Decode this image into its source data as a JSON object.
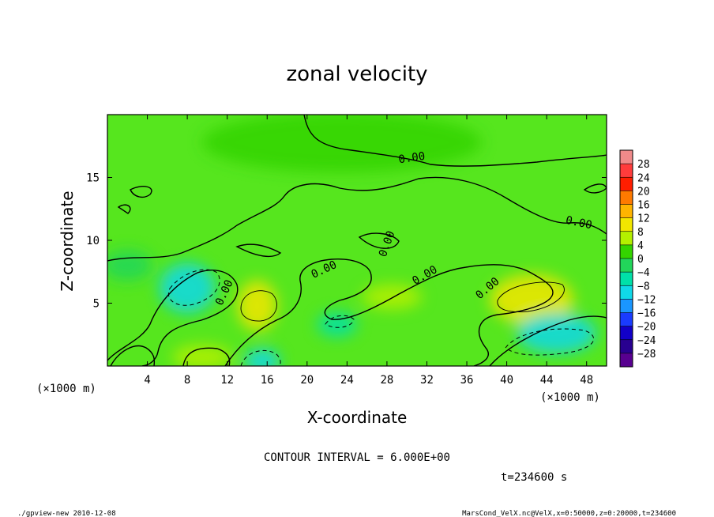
{
  "chart_data": {
    "type": "heatmap",
    "title": "zonal velocity",
    "xlabel": "X-coordinate",
    "ylabel": "Z-coordinate",
    "x_unit": "(×1000 m)",
    "y_unit": "(×1000 m)",
    "xlim": [
      0,
      50
    ],
    "ylim": [
      0,
      20
    ],
    "x_ticks": [
      4,
      8,
      12,
      16,
      20,
      24,
      28,
      32,
      36,
      40,
      44,
      48
    ],
    "y_ticks": [
      5,
      10,
      15
    ],
    "colorbar": {
      "levels": [
        28,
        24,
        20,
        16,
        12,
        8,
        4,
        0,
        -4,
        -8,
        -12,
        -16,
        -20,
        -24,
        -28
      ],
      "level_labels": [
        "28",
        "24",
        "20",
        "16",
        "12",
        "8",
        "4",
        "0",
        "−4",
        "−8",
        "−12",
        "−16",
        "−20",
        "−24",
        "−28"
      ],
      "colors": [
        "#f08a8a",
        "#ff3c3c",
        "#ff1e00",
        "#ff7a00",
        "#ffb400",
        "#f2e600",
        "#b4f000",
        "#34d400",
        "#22d65a",
        "#00e0a8",
        "#10d8e8",
        "#1a96ff",
        "#1a3cff",
        "#1200c8",
        "#280090",
        "#580090"
      ]
    },
    "background_color": "#56e61e",
    "contour_label": "0.00",
    "contour_interval": 6.0,
    "features": [
      {
        "kind": "positive",
        "x": 23.5,
        "y": 17.8,
        "rx": 14,
        "ry": 2.4,
        "value": 3
      },
      {
        "kind": "positive",
        "x": 15.0,
        "y": 4.8,
        "rx": 2.0,
        "ry": 2.0,
        "value": 8
      },
      {
        "kind": "positive",
        "x": 42.5,
        "y": 5.3,
        "rx": 4.2,
        "ry": 2.0,
        "value": 8
      },
      {
        "kind": "positive",
        "x": 28.5,
        "y": 5.5,
        "rx": 3.0,
        "ry": 1.0,
        "value": 4
      },
      {
        "kind": "positive",
        "x": 9.5,
        "y": 0.7,
        "rx": 3.0,
        "ry": 1.0,
        "value": 6
      },
      {
        "kind": "negative",
        "x": 8.0,
        "y": 6.2,
        "rx": 2.8,
        "ry": 2.0,
        "value": -9
      },
      {
        "kind": "negative",
        "x": 45.0,
        "y": 2.6,
        "rx": 4.0,
        "ry": 1.6,
        "value": -10
      },
      {
        "kind": "negative",
        "x": 15.5,
        "y": 0.4,
        "rx": 1.8,
        "ry": 1.0,
        "value": -12
      },
      {
        "kind": "negative",
        "x": 23.0,
        "y": 3.3,
        "rx": 2.0,
        "ry": 1.0,
        "value": -6
      },
      {
        "kind": "negative",
        "x": 2.0,
        "y": 8.0,
        "rx": 2.5,
        "ry": 1.2,
        "value": -3
      }
    ]
  },
  "info": {
    "contour_interval_text": "CONTOUR INTERVAL = 6.000E+00",
    "time_text": "t=234600 s"
  },
  "footer": {
    "left": "./gpview-new  2010-12-08",
    "right": "MarsCond_VelX.nc@VelX,x=0:50000,z=0:20000,t=234600"
  }
}
